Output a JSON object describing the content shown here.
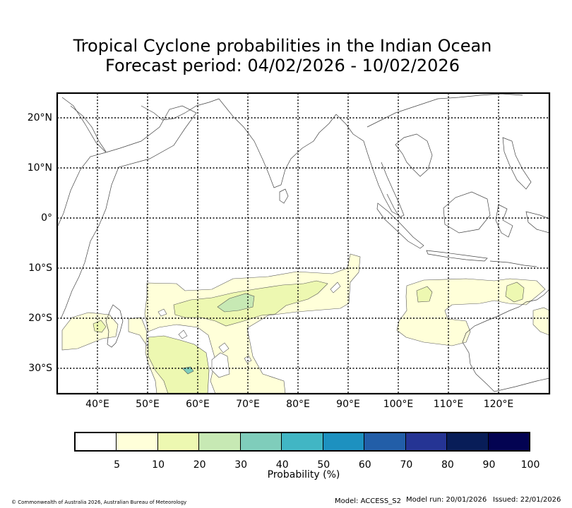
{
  "title": {
    "line1": "Tropical Cyclone probabilities in the Indian Ocean",
    "line2": "Forecast period: 04/02/2026 - 10/02/2026"
  },
  "map": {
    "lat_labels": [
      "20°N",
      "10°N",
      "0°",
      "10°S",
      "20°S",
      "30°S"
    ],
    "lon_labels": [
      "40°E",
      "50°E",
      "60°E",
      "70°E",
      "80°E",
      "90°E",
      "100°E",
      "110°E",
      "120°E"
    ],
    "lon_range": [
      32,
      131
    ],
    "lat_range": [
      -35,
      25
    ]
  },
  "colorbar": {
    "title": "Probability (%)",
    "labels": [
      "5",
      "10",
      "20",
      "30",
      "40",
      "50",
      "60",
      "70",
      "80",
      "90",
      "100"
    ],
    "colors": [
      "#ffffff",
      "#ffffd9",
      "#edf8b1",
      "#c7e9b4",
      "#7fcdbb",
      "#41b6c4",
      "#1d91c0",
      "#225ea8",
      "#253494",
      "#081d58",
      "#030352"
    ]
  },
  "footer": {
    "copyright": "© Commonwealth of Australia 2026, Australian Bureau of Meteorology",
    "model": "Model: ACCESS_S2",
    "model_run": "Model run: 20/01/2026",
    "issued": "Issued: 22/01/2026"
  }
}
